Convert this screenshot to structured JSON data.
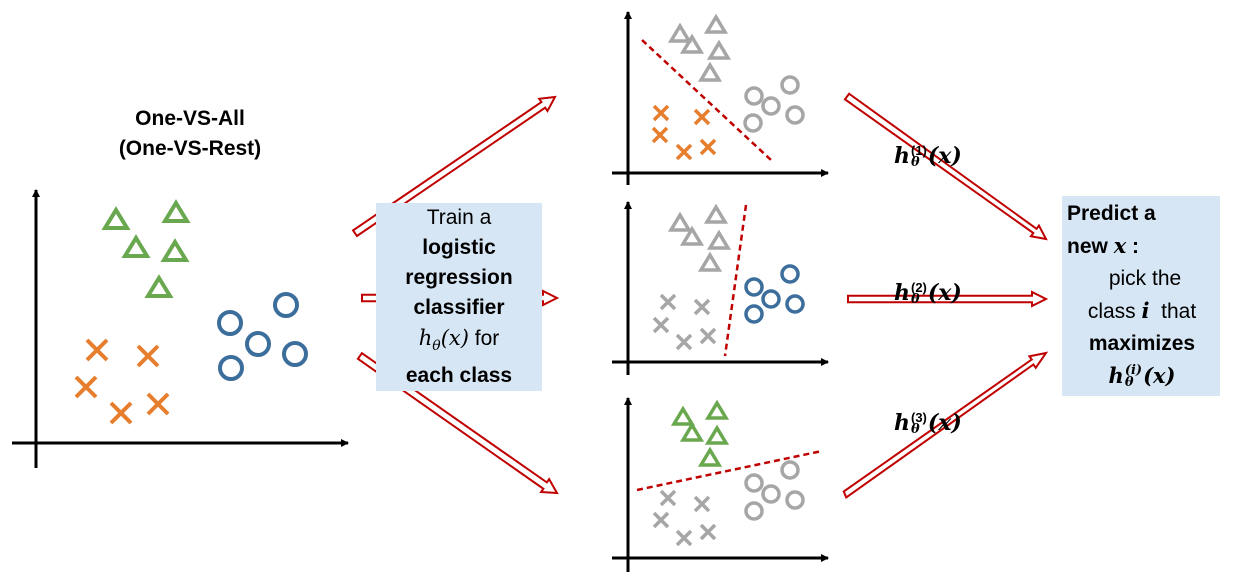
{
  "title": {
    "line1": "One-VS-All",
    "line2": "(One-VS-Rest)"
  },
  "train": {
    "line1": "Train a",
    "line2": "logistic",
    "line3": "regression",
    "line4": "classifier",
    "h": "h",
    "sub": "θ",
    "arg": "(x)",
    "for": "for",
    "line6": "each class"
  },
  "predict": {
    "line1": "Predict a",
    "line2_pre": "new ",
    "x": "x",
    "colon": " :",
    "line3": "pick the",
    "class": "class ",
    "i": "i",
    "that": "  that",
    "line5": "maximizes",
    "h": "h",
    "sup": "(i)",
    "sub": "θ",
    "arg": "(x)"
  },
  "hypotheses": [
    {
      "h": "h",
      "sup": "(1)",
      "sub": "θ",
      "arg": "(x)"
    },
    {
      "h": "h",
      "sup": "(2)",
      "sub": "θ",
      "arg": "(x)"
    },
    {
      "h": "h",
      "sup": "(3)",
      "sub": "θ",
      "arg": "(x)"
    }
  ],
  "colors": {
    "triangle": "#6aa84f",
    "cross": "#e67e2e",
    "circle": "#3c6e9c",
    "rest": "#a6a6a6",
    "arrow": "#c00000",
    "boundary": "#c00000",
    "box": "#d7e6f4"
  },
  "icons": [
    "triangle-marker",
    "cross-marker",
    "circle-marker",
    "hollow-arrow"
  ]
}
